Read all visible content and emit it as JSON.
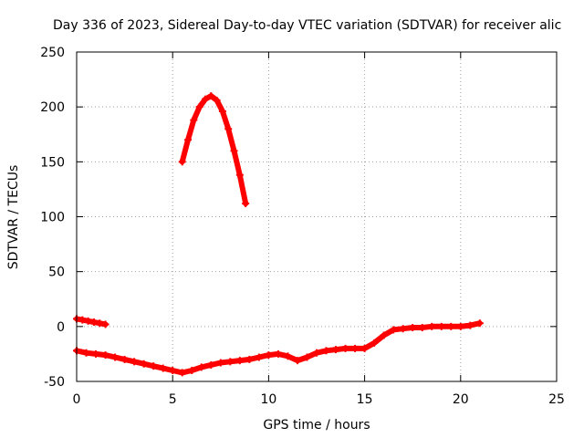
{
  "chart_data": {
    "type": "scatter",
    "title": "Day 336 of 2023, Sidereal Day-to-day VTEC variation (SDTVAR) for receiver alic",
    "xlabel": "GPS time / hours",
    "ylabel": "SDTVAR / TECUs",
    "xlim": [
      0,
      25
    ],
    "ylim": [
      -50,
      250
    ],
    "xticks": [
      0,
      5,
      10,
      15,
      20,
      25
    ],
    "yticks": [
      -50,
      0,
      50,
      100,
      150,
      200,
      250
    ],
    "grid": true,
    "legend": "none",
    "series_color": "#ff0000",
    "series": [
      {
        "values": [
          [
            0.0,
            7
          ],
          [
            0.3,
            6
          ],
          [
            0.6,
            5
          ],
          [
            0.9,
            4
          ],
          [
            1.2,
            3
          ],
          [
            1.5,
            2
          ]
        ]
      },
      {
        "values": [
          [
            5.5,
            150
          ],
          [
            5.8,
            170
          ],
          [
            6.1,
            188
          ],
          [
            6.4,
            200
          ],
          [
            6.7,
            207
          ],
          [
            7.0,
            210
          ],
          [
            7.3,
            206
          ],
          [
            7.6,
            196
          ],
          [
            7.9,
            180
          ],
          [
            8.2,
            160
          ],
          [
            8.5,
            138
          ],
          [
            8.8,
            112
          ]
        ]
      },
      {
        "values": [
          [
            0.0,
            -22
          ],
          [
            0.5,
            -24
          ],
          [
            1.0,
            -25
          ],
          [
            1.5,
            -26
          ],
          [
            2.0,
            -28
          ],
          [
            2.5,
            -30
          ],
          [
            3.0,
            -32
          ],
          [
            3.5,
            -34
          ],
          [
            4.0,
            -36
          ],
          [
            4.5,
            -38
          ],
          [
            5.0,
            -40
          ],
          [
            5.5,
            -42
          ],
          [
            6.0,
            -40
          ],
          [
            6.5,
            -37
          ],
          [
            7.0,
            -35
          ],
          [
            7.5,
            -33
          ],
          [
            8.0,
            -32
          ],
          [
            8.5,
            -31
          ],
          [
            9.0,
            -30
          ],
          [
            9.5,
            -28
          ],
          [
            10.0,
            -26
          ],
          [
            10.5,
            -25
          ],
          [
            11.0,
            -27
          ],
          [
            11.5,
            -31
          ],
          [
            12.0,
            -28
          ],
          [
            12.5,
            -24
          ],
          [
            13.0,
            -22
          ],
          [
            13.5,
            -21
          ],
          [
            14.0,
            -20
          ],
          [
            14.5,
            -20
          ],
          [
            15.0,
            -20
          ],
          [
            15.5,
            -15
          ],
          [
            16.0,
            -8
          ],
          [
            16.5,
            -3
          ],
          [
            17.0,
            -2
          ],
          [
            17.5,
            -1
          ],
          [
            18.0,
            -1
          ],
          [
            18.5,
            0
          ],
          [
            19.0,
            0
          ],
          [
            19.5,
            0
          ],
          [
            20.0,
            0
          ],
          [
            20.5,
            1
          ],
          [
            21.0,
            3
          ]
        ]
      }
    ]
  }
}
